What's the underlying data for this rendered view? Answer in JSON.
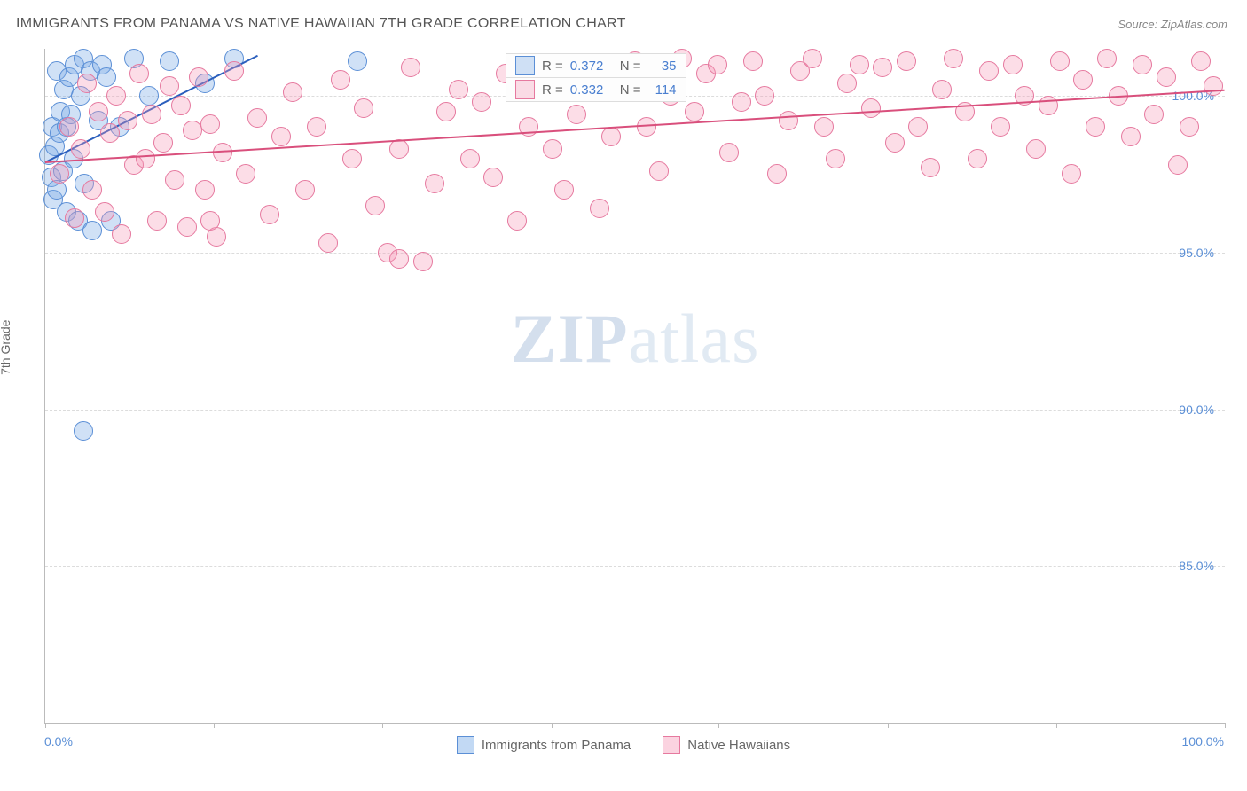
{
  "title": "IMMIGRANTS FROM PANAMA VS NATIVE HAWAIIAN 7TH GRADE CORRELATION CHART",
  "source": "Source: ZipAtlas.com",
  "y_axis_title": "7th Grade",
  "watermark_a": "ZIP",
  "watermark_b": "atlas",
  "chart": {
    "type": "scatter",
    "xlim": [
      0,
      100
    ],
    "ylim": [
      80,
      101.5
    ],
    "x_ticks": [
      0,
      14.3,
      28.6,
      42.9,
      57.1,
      71.4,
      85.7,
      100
    ],
    "x_tick_labels_shown": {
      "0": "0.0%",
      "100": "100.0%"
    },
    "y_grid": [
      {
        "v": 100,
        "label": "100.0%"
      },
      {
        "v": 95,
        "label": "95.0%"
      },
      {
        "v": 90,
        "label": "90.0%"
      },
      {
        "v": 85,
        "label": "85.0%"
      }
    ],
    "background_color": "#ffffff",
    "grid_color": "#dcdcdc",
    "axis_color": "#bbbbbb",
    "marker_radius": 10,
    "marker_stroke_width": 1.2,
    "series": [
      {
        "name": "Immigrants from Panama",
        "fill": "rgba(120,170,230,0.35)",
        "stroke": "#5b8fd6",
        "R": "0.372",
        "N": "35",
        "trend": {
          "x1": 0,
          "y1": 97.9,
          "x2": 18,
          "y2": 101.3,
          "color": "#2b5fbd",
          "width": 2
        },
        "points": [
          [
            0.3,
            98.1
          ],
          [
            0.5,
            97.4
          ],
          [
            0.6,
            99.0
          ],
          [
            0.7,
            96.7
          ],
          [
            0.8,
            98.4
          ],
          [
            1.0,
            97.0
          ],
          [
            1.0,
            100.8
          ],
          [
            1.2,
            98.8
          ],
          [
            1.3,
            99.5
          ],
          [
            1.5,
            97.6
          ],
          [
            1.6,
            100.2
          ],
          [
            1.8,
            99.0
          ],
          [
            1.8,
            96.3
          ],
          [
            2.0,
            100.6
          ],
          [
            2.2,
            99.4
          ],
          [
            2.4,
            98.0
          ],
          [
            2.5,
            101.0
          ],
          [
            2.8,
            96.0
          ],
          [
            3.0,
            100.0
          ],
          [
            3.2,
            101.2
          ],
          [
            3.3,
            97.2
          ],
          [
            3.8,
            100.8
          ],
          [
            4.0,
            95.7
          ],
          [
            4.5,
            99.2
          ],
          [
            4.8,
            101.0
          ],
          [
            5.2,
            100.6
          ],
          [
            5.6,
            96.0
          ],
          [
            6.3,
            99.0
          ],
          [
            7.5,
            101.2
          ],
          [
            8.8,
            100.0
          ],
          [
            10.5,
            101.1
          ],
          [
            13.5,
            100.4
          ],
          [
            16.0,
            101.2
          ],
          [
            26.5,
            101.1
          ],
          [
            3.2,
            89.3
          ]
        ]
      },
      {
        "name": "Native Hawaiians",
        "fill": "rgba(245,150,180,0.32)",
        "stroke": "#e6799f",
        "R": "0.332",
        "N": "114",
        "trend": {
          "x1": 0,
          "y1": 97.9,
          "x2": 100,
          "y2": 100.2,
          "color": "#d94f7c",
          "width": 2
        },
        "points": [
          [
            1.2,
            97.5
          ],
          [
            2.0,
            99.0
          ],
          [
            2.5,
            96.1
          ],
          [
            3.0,
            98.3
          ],
          [
            3.5,
            100.4
          ],
          [
            4.0,
            97.0
          ],
          [
            4.5,
            99.5
          ],
          [
            5.0,
            96.3
          ],
          [
            5.5,
            98.8
          ],
          [
            6.0,
            100.0
          ],
          [
            6.5,
            95.6
          ],
          [
            7.0,
            99.2
          ],
          [
            7.5,
            97.8
          ],
          [
            8.0,
            100.7
          ],
          [
            8.5,
            98.0
          ],
          [
            9.0,
            99.4
          ],
          [
            9.5,
            96.0
          ],
          [
            10.0,
            98.5
          ],
          [
            10.5,
            100.3
          ],
          [
            11.0,
            97.3
          ],
          [
            11.5,
            99.7
          ],
          [
            12.0,
            95.8
          ],
          [
            12.5,
            98.9
          ],
          [
            13.0,
            100.6
          ],
          [
            13.5,
            97.0
          ],
          [
            14.0,
            99.1
          ],
          [
            14.5,
            95.5
          ],
          [
            15.0,
            98.2
          ],
          [
            16.0,
            100.8
          ],
          [
            17.0,
            97.5
          ],
          [
            18.0,
            99.3
          ],
          [
            19.0,
            96.2
          ],
          [
            20.0,
            98.7
          ],
          [
            21.0,
            100.1
          ],
          [
            22.0,
            97.0
          ],
          [
            23.0,
            99.0
          ],
          [
            24.0,
            95.3
          ],
          [
            25.0,
            100.5
          ],
          [
            26.0,
            98.0
          ],
          [
            27.0,
            99.6
          ],
          [
            28.0,
            96.5
          ],
          [
            29.0,
            95.0
          ],
          [
            30.0,
            98.3
          ],
          [
            31.0,
            100.9
          ],
          [
            32.0,
            94.7
          ],
          [
            33.0,
            97.2
          ],
          [
            34.0,
            99.5
          ],
          [
            35.0,
            100.2
          ],
          [
            36.0,
            98.0
          ],
          [
            37.0,
            99.8
          ],
          [
            38.0,
            97.4
          ],
          [
            39.0,
            100.7
          ],
          [
            40.0,
            96.0
          ],
          [
            41.0,
            99.0
          ],
          [
            42.0,
            101.0
          ],
          [
            43.0,
            98.3
          ],
          [
            44.0,
            97.0
          ],
          [
            45.0,
            99.4
          ],
          [
            46.0,
            100.3
          ],
          [
            47.0,
            96.4
          ],
          [
            48.0,
            98.7
          ],
          [
            49.0,
            100.9
          ],
          [
            50.0,
            101.1
          ],
          [
            51.0,
            99.0
          ],
          [
            52.0,
            97.6
          ],
          [
            53.0,
            100.0
          ],
          [
            54.0,
            101.2
          ],
          [
            55.0,
            99.5
          ],
          [
            56.0,
            100.7
          ],
          [
            57.0,
            101.0
          ],
          [
            58.0,
            98.2
          ],
          [
            59.0,
            99.8
          ],
          [
            60.0,
            101.1
          ],
          [
            61.0,
            100.0
          ],
          [
            62.0,
            97.5
          ],
          [
            63.0,
            99.2
          ],
          [
            64.0,
            100.8
          ],
          [
            65.0,
            101.2
          ],
          [
            66.0,
            99.0
          ],
          [
            67.0,
            98.0
          ],
          [
            68.0,
            100.4
          ],
          [
            69.0,
            101.0
          ],
          [
            70.0,
            99.6
          ],
          [
            71.0,
            100.9
          ],
          [
            72.0,
            98.5
          ],
          [
            73.0,
            101.1
          ],
          [
            74.0,
            99.0
          ],
          [
            75.0,
            97.7
          ],
          [
            76.0,
            100.2
          ],
          [
            77.0,
            101.2
          ],
          [
            78.0,
            99.5
          ],
          [
            79.0,
            98.0
          ],
          [
            80.0,
            100.8
          ],
          [
            81.0,
            99.0
          ],
          [
            82.0,
            101.0
          ],
          [
            83.0,
            100.0
          ],
          [
            84.0,
            98.3
          ],
          [
            85.0,
            99.7
          ],
          [
            86.0,
            101.1
          ],
          [
            87.0,
            97.5
          ],
          [
            88.0,
            100.5
          ],
          [
            89.0,
            99.0
          ],
          [
            90.0,
            101.2
          ],
          [
            91.0,
            100.0
          ],
          [
            92.0,
            98.7
          ],
          [
            93.0,
            101.0
          ],
          [
            94.0,
            99.4
          ],
          [
            95.0,
            100.6
          ],
          [
            96.0,
            97.8
          ],
          [
            97.0,
            99.0
          ],
          [
            98.0,
            101.1
          ],
          [
            99.0,
            100.3
          ],
          [
            14.0,
            96.0
          ],
          [
            30.0,
            94.8
          ]
        ]
      }
    ]
  },
  "bottom_legend": [
    {
      "label": "Immigrants from Panama",
      "fill": "rgba(120,170,230,0.45)",
      "stroke": "#5b8fd6"
    },
    {
      "label": "Native Hawaiians",
      "fill": "rgba(245,150,180,0.42)",
      "stroke": "#e6799f"
    }
  ]
}
